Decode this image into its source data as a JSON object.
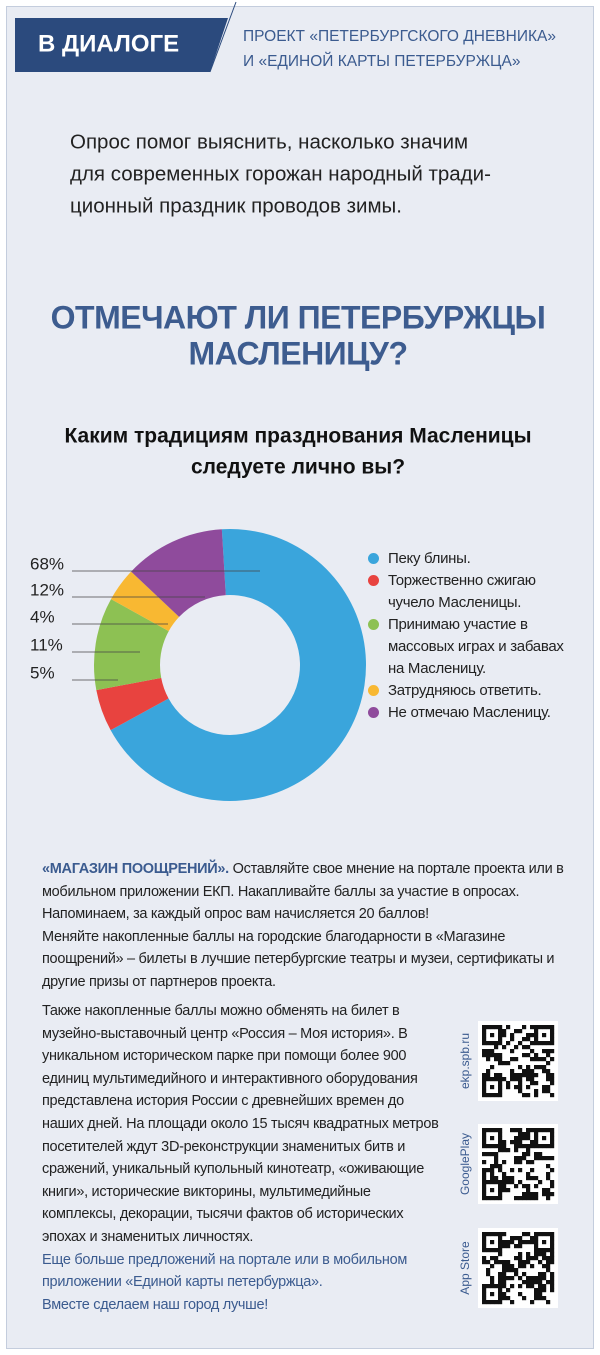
{
  "header": {
    "badge": "В ДИАЛОГЕ",
    "project": [
      "ПРОЕКТ «ПЕТЕРБУРГСКОГО ДНЕВНИКА»",
      "И «ЕДИНОЙ КАРТЫ ПЕТЕРБУРЖЦА»"
    ]
  },
  "intro": [
    "Опрос помог выяснить, насколько значим",
    "для современных горожан народный тради-",
    "ционный праздник проводов зимы."
  ],
  "chart_data": {
    "type": "donut",
    "title": [
      "ОТМЕЧАЮТ ЛИ ПЕТЕРБУРЖЦЫ",
      "МАСЛЕНИЦУ?"
    ],
    "subtitle": [
      "Каким традициям празднования Масленицы",
      "следуете лично вы?"
    ],
    "categories": [
      "Пеку блины.",
      "Торжественно сжигаю чучело Масленицы.",
      "Принимаю участие в массовых играх и забавах на Масленицу.",
      "Затрудняюсь ответить.",
      "Не отмечаю Масленицу."
    ],
    "values": [
      68,
      5,
      11,
      4,
      12
    ],
    "value_labels": [
      "68%",
      "5%",
      "11%",
      "4%",
      "12%"
    ],
    "colors": [
      "#3aa5dc",
      "#e8433f",
      "#8dc153",
      "#f8b832",
      "#8f4b9c"
    ]
  },
  "body": {
    "lead": "«МАГАЗИН ПООЩРЕНИЙ».",
    "paragraphs": [
      "Оставляйте свое мнение на портале проекта или в мобильном приложении ЕКП. Накапливайте баллы за участие в опросах. Напоминаем, за каждый опрос вам начисляется 20 баллов!",
      "Меняйте накопленные баллы на городские благодарности в «Магазине поощрений» – билеты в лучшие петербургские театры и музеи, сертификаты и другие призы от партнеров проекта.",
      "Также накопленные баллы можно обменять на билет в музейно-выставочный центр «Россия – Моя история». В уникальном историческом парке при помощи более 900 единиц мультимедийного и интерактивного оборудования представлена история России с древнейших времен до наших дней. На площади около 15 тысяч квадратных метров посетителей ждут 3D-реконструкции знаменитых битв и сражений, уникальный купольный кинотеатр, «оживающие книги», исторические викторины, мультимедийные комплексы, декорации, тысячи фактов об исторических эпохах и знаменитых личностях."
    ],
    "footer": [
      "Еще больше предложений на портале или в мобильном приложении «Единой карты петербуржца».",
      "Вместе сделаем наш город лучше!"
    ]
  },
  "qr": [
    "ekp.spb.ru",
    "GooglePlay",
    "App Store"
  ]
}
